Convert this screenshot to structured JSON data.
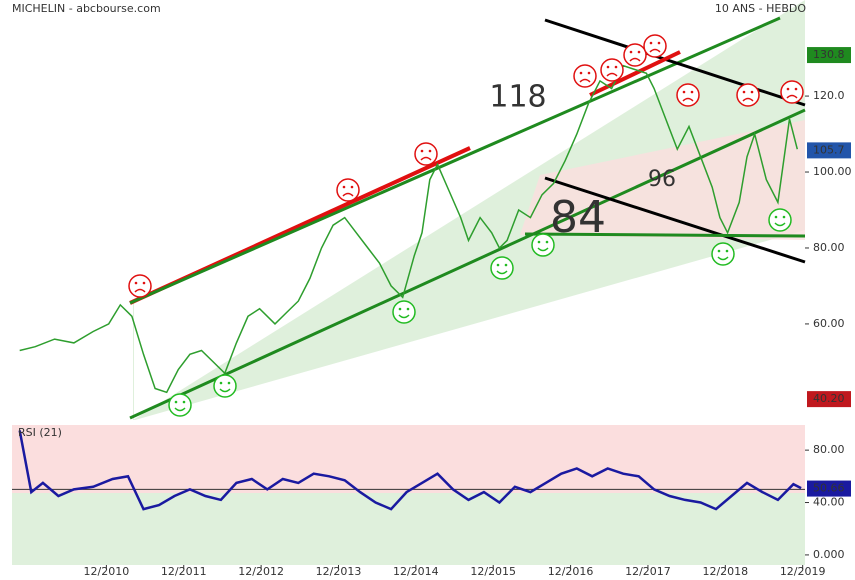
{
  "chart_data": [
    {
      "type": "line",
      "title": "MICHELIN - abcbourse.com",
      "subtitle": "10 ANS - HEBDO",
      "x": [
        2009.8,
        2010.0,
        2010.25,
        2010.5,
        2010.75,
        2010.95,
        2011.1,
        2011.25,
        2011.4,
        2011.55,
        2011.7,
        2011.85,
        2012.0,
        2012.15,
        2012.3,
        2012.45,
        2012.6,
        2012.75,
        2012.9,
        2013.1,
        2013.25,
        2013.4,
        2013.55,
        2013.7,
        2013.85,
        2014.0,
        2014.15,
        2014.3,
        2014.45,
        2014.6,
        2014.75,
        2014.9,
        2015.0,
        2015.1,
        2015.2,
        2015.35,
        2015.5,
        2015.6,
        2015.75,
        2015.9,
        2016.0,
        2016.1,
        2016.25,
        2016.4,
        2016.55,
        2016.7,
        2016.85,
        2017.0,
        2017.15,
        2017.3,
        2017.45,
        2017.6,
        2017.75,
        2017.9,
        2018.0,
        2018.15,
        2018.3,
        2018.45,
        2018.6,
        2018.75,
        2018.85,
        2018.95,
        2019.1,
        2019.2,
        2019.3,
        2019.45,
        2019.6,
        2019.75,
        2019.85
      ],
      "series": [
        {
          "color": "#2e9e2e",
          "values": [
            53,
            54,
            56,
            55,
            58,
            60,
            65,
            62,
            52,
            43,
            42,
            48,
            52,
            53,
            50,
            47,
            55,
            62,
            64,
            60,
            63,
            66,
            72,
            80,
            86,
            88,
            84,
            80,
            76,
            70,
            67,
            78,
            84,
            98,
            102,
            95,
            88,
            82,
            88,
            84,
            80,
            82,
            90,
            88,
            94,
            97,
            103,
            110,
            118,
            124,
            122,
            128,
            127,
            126,
            122,
            114,
            106,
            112,
            104,
            96,
            88,
            84,
            92,
            104,
            110,
            98,
            92,
            114,
            106
          ]
        }
      ],
      "xlim": [
        2009.7,
        2019.95
      ],
      "xticks": [
        {
          "value": 2010.92,
          "label": "12/2010"
        },
        {
          "value": 2011.92,
          "label": "12/2011"
        },
        {
          "value": 2012.92,
          "label": "12/2012"
        },
        {
          "value": 2013.92,
          "label": "12/2013"
        },
        {
          "value": 2014.92,
          "label": "12/2014"
        },
        {
          "value": 2015.92,
          "label": "12/2015"
        },
        {
          "value": 2016.92,
          "label": "12/2016"
        },
        {
          "value": 2017.92,
          "label": "12/2017"
        },
        {
          "value": 2018.92,
          "label": "12/2018"
        },
        {
          "value": 2019.92,
          "label": "12/2019"
        }
      ],
      "ylim": [
        34.7,
        145.3
      ],
      "yticks": [
        {
          "value": 60,
          "label": "60.00"
        },
        {
          "value": 80,
          "label": "80.00"
        },
        {
          "value": 100,
          "label": "100.00"
        },
        {
          "value": 120,
          "label": "120.0"
        }
      ],
      "price_tags": [
        {
          "value": 130.8,
          "color": "#1f8a1f"
        },
        {
          "value": 105.7,
          "color": "#2255aa"
        },
        {
          "value": 40.2,
          "label": "40.20",
          "color": "#c0181e"
        }
      ],
      "annotations": [
        {
          "text": "118",
          "value": 118,
          "color": "#e01010"
        },
        {
          "text": "96",
          "value": 96,
          "color": "#333"
        },
        {
          "text": "84",
          "value": 84,
          "color": "#1f8a1f"
        }
      ]
    },
    {
      "type": "line",
      "x": [
        2009.8,
        2009.95,
        2010.1,
        2010.3,
        2010.5,
        2010.75,
        2011.0,
        2011.2,
        2011.4,
        2011.6,
        2011.8,
        2012.0,
        2012.2,
        2012.4,
        2012.6,
        2012.8,
        2013.0,
        2013.2,
        2013.4,
        2013.6,
        2013.8,
        2014.0,
        2014.2,
        2014.4,
        2014.6,
        2014.8,
        2015.0,
        2015.2,
        2015.4,
        2015.6,
        2015.8,
        2016.0,
        2016.2,
        2016.4,
        2016.6,
        2016.8,
        2017.0,
        2017.2,
        2017.4,
        2017.6,
        2017.8,
        2018.0,
        2018.2,
        2018.4,
        2018.6,
        2018.8,
        2019.0,
        2019.2,
        2019.4,
        2019.6,
        2019.8,
        2019.9
      ],
      "series": [
        {
          "name": "RSI (21)",
          "color": "#1a1aa0",
          "values": [
            95,
            48,
            55,
            45,
            50,
            52,
            58,
            60,
            35,
            38,
            45,
            50,
            45,
            42,
            55,
            58,
            50,
            58,
            55,
            62,
            60,
            57,
            48,
            40,
            35,
            48,
            55,
            62,
            50,
            42,
            48,
            40,
            52,
            48,
            55,
            62,
            66,
            60,
            66,
            62,
            60,
            50,
            45,
            42,
            40,
            35,
            45,
            55,
            48,
            42,
            54,
            51
          ]
        }
      ],
      "xlim": [
        2009.7,
        2019.95
      ],
      "ylim": [
        -7.7,
        99.2
      ],
      "yticks": [
        {
          "value": 0,
          "label": "0.000"
        },
        {
          "value": 40,
          "label": "40.00"
        },
        {
          "value": 80,
          "label": "80.00"
        }
      ],
      "midline": 50,
      "price_tags": [
        {
          "value": 50.66,
          "color": "#1a1aa0"
        }
      ]
    }
  ]
}
